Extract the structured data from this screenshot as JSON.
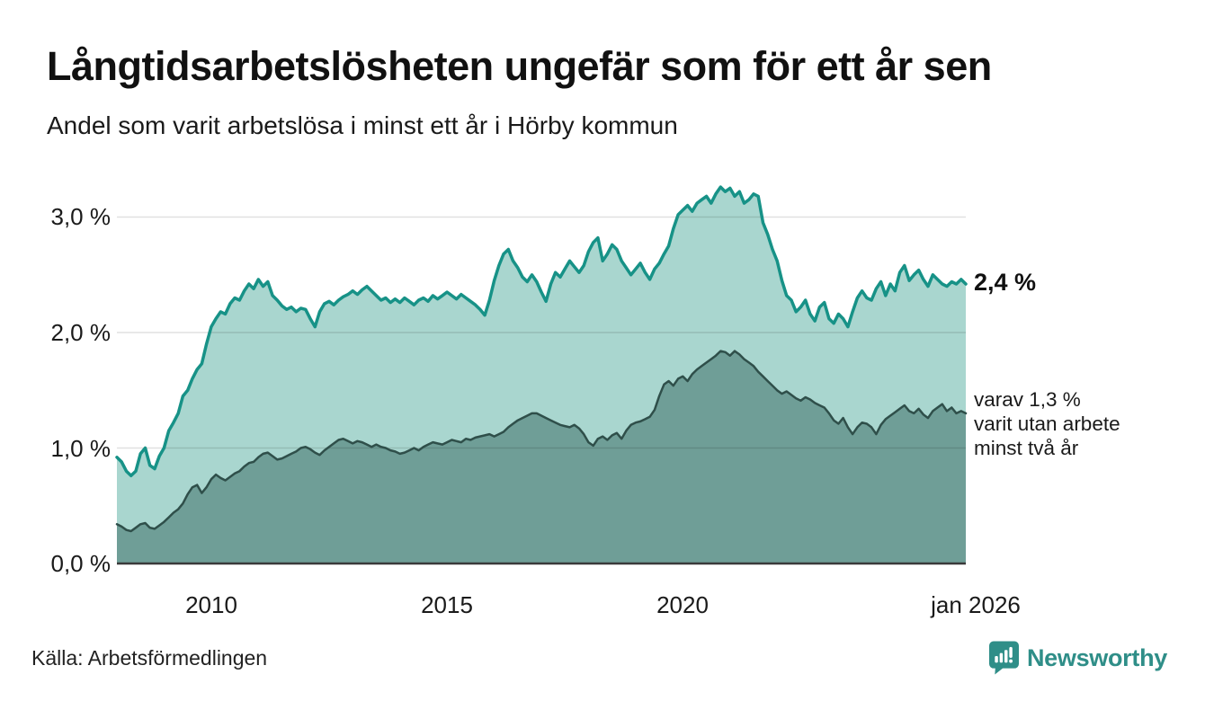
{
  "header": {
    "title": "Långtidsarbetslösheten ungefär som för ett år sen",
    "subtitle": "Andel som varit arbetslösa i minst ett år i Hörby kommun"
  },
  "chart_data": {
    "type": "area",
    "title": "Långtidsarbetslösheten ungefär som för ett år sen",
    "subtitle": "Andel som varit arbetslösa i minst ett år i Hörby kommun",
    "unit": "%",
    "xlim": [
      2008,
      2026
    ],
    "ylim": [
      0,
      3.37
    ],
    "gridline_values": [
      1,
      2,
      3
    ],
    "y_ticks": [
      "3,0 %",
      "2,0 %",
      "1,0 %",
      "0,0 %"
    ],
    "x_ticks": [
      "2010",
      "2015",
      "2020",
      "jan 2026"
    ],
    "x_start": 2008.0,
    "x_step": 0.1,
    "legend_position": "right-annotations",
    "grid": "horizontal",
    "series": [
      {
        "name": "Andel arbetslösa minst ett år",
        "line_color": "#179287",
        "fill_color": "#a9d6cf",
        "line_width": 3.5,
        "last_value_label": "2,4 %",
        "values": [
          0.92,
          0.88,
          0.8,
          0.76,
          0.8,
          0.95,
          1.0,
          0.85,
          0.82,
          0.93,
          1.0,
          1.15,
          1.22,
          1.3,
          1.45,
          1.5,
          1.6,
          1.68,
          1.73,
          1.9,
          2.05,
          2.12,
          2.18,
          2.16,
          2.25,
          2.3,
          2.28,
          2.36,
          2.42,
          2.38,
          2.46,
          2.4,
          2.44,
          2.32,
          2.28,
          2.23,
          2.2,
          2.22,
          2.18,
          2.21,
          2.2,
          2.12,
          2.05,
          2.18,
          2.25,
          2.27,
          2.24,
          2.28,
          2.31,
          2.33,
          2.36,
          2.33,
          2.37,
          2.4,
          2.36,
          2.32,
          2.28,
          2.3,
          2.26,
          2.29,
          2.26,
          2.3,
          2.27,
          2.24,
          2.28,
          2.3,
          2.27,
          2.32,
          2.29,
          2.32,
          2.35,
          2.32,
          2.29,
          2.33,
          2.3,
          2.27,
          2.24,
          2.2,
          2.15,
          2.28,
          2.45,
          2.58,
          2.68,
          2.72,
          2.62,
          2.56,
          2.48,
          2.44,
          2.5,
          2.44,
          2.35,
          2.27,
          2.42,
          2.52,
          2.48,
          2.55,
          2.62,
          2.57,
          2.52,
          2.58,
          2.7,
          2.78,
          2.82,
          2.62,
          2.68,
          2.76,
          2.72,
          2.62,
          2.56,
          2.5,
          2.55,
          2.6,
          2.52,
          2.46,
          2.55,
          2.6,
          2.68,
          2.75,
          2.9,
          3.02,
          3.06,
          3.1,
          3.05,
          3.12,
          3.15,
          3.18,
          3.12,
          3.2,
          3.26,
          3.22,
          3.25,
          3.18,
          3.22,
          3.12,
          3.15,
          3.2,
          3.18,
          2.95,
          2.85,
          2.72,
          2.62,
          2.45,
          2.32,
          2.28,
          2.18,
          2.22,
          2.28,
          2.16,
          2.1,
          2.22,
          2.26,
          2.12,
          2.08,
          2.16,
          2.12,
          2.05,
          2.18,
          2.3,
          2.36,
          2.3,
          2.28,
          2.38,
          2.44,
          2.32,
          2.42,
          2.36,
          2.52,
          2.58,
          2.45,
          2.5,
          2.54,
          2.46,
          2.4,
          2.5,
          2.46,
          2.42,
          2.4,
          2.44,
          2.42,
          2.46,
          2.42
        ]
      },
      {
        "name": "varav utan arbete minst två år",
        "line_color": "#2f4f4a",
        "fill_color": "#6f9e97",
        "line_width": 2.5,
        "last_value_label": "1,3 %",
        "values": [
          0.34,
          0.32,
          0.29,
          0.28,
          0.31,
          0.34,
          0.35,
          0.31,
          0.3,
          0.33,
          0.36,
          0.4,
          0.44,
          0.47,
          0.52,
          0.6,
          0.66,
          0.68,
          0.61,
          0.66,
          0.73,
          0.77,
          0.74,
          0.72,
          0.75,
          0.78,
          0.8,
          0.84,
          0.87,
          0.88,
          0.92,
          0.95,
          0.96,
          0.93,
          0.9,
          0.91,
          0.93,
          0.95,
          0.97,
          1.0,
          1.01,
          0.99,
          0.96,
          0.94,
          0.98,
          1.01,
          1.04,
          1.07,
          1.08,
          1.06,
          1.04,
          1.06,
          1.05,
          1.03,
          1.01,
          1.03,
          1.01,
          1.0,
          0.98,
          0.97,
          0.95,
          0.96,
          0.98,
          1.0,
          0.98,
          1.01,
          1.03,
          1.05,
          1.04,
          1.03,
          1.05,
          1.07,
          1.06,
          1.05,
          1.08,
          1.07,
          1.09,
          1.1,
          1.11,
          1.12,
          1.1,
          1.12,
          1.14,
          1.18,
          1.21,
          1.24,
          1.26,
          1.28,
          1.3,
          1.3,
          1.28,
          1.26,
          1.24,
          1.22,
          1.2,
          1.19,
          1.18,
          1.2,
          1.17,
          1.12,
          1.05,
          1.02,
          1.08,
          1.1,
          1.07,
          1.11,
          1.13,
          1.08,
          1.15,
          1.2,
          1.22,
          1.23,
          1.25,
          1.27,
          1.33,
          1.45,
          1.55,
          1.58,
          1.54,
          1.6,
          1.62,
          1.58,
          1.64,
          1.68,
          1.71,
          1.74,
          1.77,
          1.8,
          1.84,
          1.83,
          1.8,
          1.84,
          1.81,
          1.77,
          1.74,
          1.71,
          1.66,
          1.62,
          1.58,
          1.54,
          1.5,
          1.47,
          1.49,
          1.46,
          1.43,
          1.41,
          1.44,
          1.42,
          1.39,
          1.37,
          1.35,
          1.3,
          1.24,
          1.21,
          1.26,
          1.18,
          1.12,
          1.18,
          1.22,
          1.21,
          1.18,
          1.12,
          1.2,
          1.25,
          1.28,
          1.31,
          1.34,
          1.37,
          1.32,
          1.3,
          1.34,
          1.29,
          1.26,
          1.32,
          1.35,
          1.38,
          1.32,
          1.35,
          1.3,
          1.32,
          1.3
        ]
      }
    ],
    "annotations": {
      "total_label": "2,4 %",
      "sub_label_lines": [
        "varav 1,3 %",
        "varit utan arbete",
        "minst två år"
      ]
    },
    "colors": {
      "gridline": "rgba(0,0,0,0.12)",
      "baseline": "#3a3a3a",
      "background": "#ffffff"
    }
  },
  "footer": {
    "source": "Källa: Arbetsförmedlingen",
    "brand": "Newsworthy",
    "brand_color": "#2f8e88"
  }
}
